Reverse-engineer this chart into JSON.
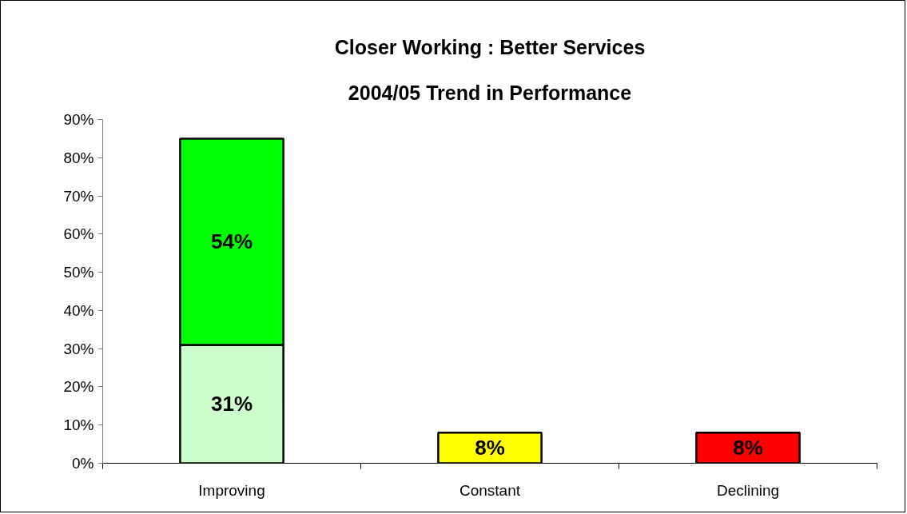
{
  "chart_data": {
    "type": "bar",
    "title": "Closer Working : Better Services",
    "subtitle": "2004/05 Trend in Performance",
    "categories": [
      "Improving",
      "Constant",
      "Declining"
    ],
    "stacked": true,
    "series": [
      {
        "colors": [
          "#ccffcc",
          "#ffff00",
          "#ff0000"
        ],
        "values": [
          31,
          8,
          8
        ],
        "value_labels": [
          "31%",
          "8%",
          "8%"
        ]
      },
      {
        "color": "#00ff00",
        "values": [
          54,
          null,
          null
        ],
        "value_labels": [
          "54%",
          null,
          null
        ]
      }
    ],
    "ylim": [
      0,
      90
    ],
    "yticks": [
      {
        "value": 0,
        "label": "0%"
      },
      {
        "value": 10,
        "label": "10%"
      },
      {
        "value": 20,
        "label": "20%"
      },
      {
        "value": 30,
        "label": "30%"
      },
      {
        "value": 40,
        "label": "40%"
      },
      {
        "value": 50,
        "label": "50%"
      },
      {
        "value": 60,
        "label": "60%"
      },
      {
        "value": 70,
        "label": "70%"
      },
      {
        "value": 80,
        "label": "80%"
      },
      {
        "value": 90,
        "label": "90%"
      }
    ]
  }
}
